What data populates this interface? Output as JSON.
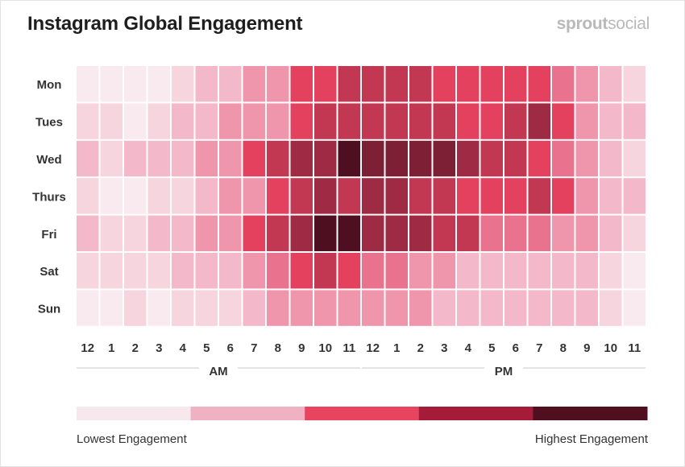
{
  "header": {
    "title": "Instagram Global Engagement",
    "brand_bold": "sprout",
    "brand_light": "social"
  },
  "chart_data": {
    "type": "heatmap",
    "title": "Instagram Global Engagement",
    "rows": [
      "Mon",
      "Tues",
      "Wed",
      "Thurs",
      "Fri",
      "Sat",
      "Sun"
    ],
    "columns": [
      "12",
      "1",
      "2",
      "3",
      "4",
      "5",
      "6",
      "7",
      "8",
      "9",
      "10",
      "11",
      "12",
      "1",
      "2",
      "3",
      "4",
      "5",
      "6",
      "7",
      "8",
      "9",
      "10",
      "11"
    ],
    "column_groups": [
      {
        "label": "AM",
        "span": 12
      },
      {
        "label": "PM",
        "span": 12
      }
    ],
    "scale_min_label": "Lowest Engagement",
    "scale_max_label": "Highest Engagement",
    "value_range": [
      1,
      10
    ],
    "values": [
      [
        1,
        1,
        1,
        1,
        2,
        3,
        3,
        4,
        4,
        6,
        6,
        7,
        7,
        7,
        7,
        6,
        6,
        6,
        6,
        6,
        5,
        4,
        3,
        2
      ],
      [
        2,
        2,
        1,
        2,
        3,
        3,
        4,
        4,
        4,
        6,
        7,
        7,
        7,
        7,
        7,
        7,
        6,
        6,
        7,
        8,
        6,
        4,
        3,
        3
      ],
      [
        3,
        2,
        3,
        3,
        3,
        4,
        4,
        6,
        7,
        8,
        8,
        10,
        9,
        9,
        9,
        9,
        8,
        7,
        7,
        6,
        5,
        4,
        3,
        2
      ],
      [
        2,
        1,
        1,
        2,
        2,
        3,
        4,
        4,
        6,
        7,
        8,
        7,
        8,
        8,
        7,
        7,
        6,
        6,
        6,
        7,
        6,
        4,
        3,
        3
      ],
      [
        3,
        2,
        2,
        3,
        3,
        4,
        4,
        6,
        7,
        8,
        10,
        10,
        8,
        8,
        8,
        7,
        7,
        5,
        5,
        5,
        4,
        4,
        3,
        2
      ],
      [
        2,
        2,
        2,
        2,
        3,
        3,
        3,
        4,
        5,
        6,
        7,
        6,
        5,
        5,
        4,
        4,
        3,
        3,
        3,
        3,
        3,
        3,
        2,
        1
      ],
      [
        1,
        1,
        2,
        1,
        2,
        2,
        2,
        3,
        4,
        4,
        4,
        4,
        4,
        4,
        4,
        3,
        3,
        3,
        3,
        3,
        3,
        3,
        2,
        1
      ]
    ],
    "legend_colors": [
      "#f7e8ed",
      "#f0b1c3",
      "#e8445f",
      "#a51c39",
      "#4f0f1f"
    ],
    "cell_colors": {
      "1": "#f8eaef",
      "2": "#f7d5df",
      "3": "#f3b8c9",
      "4": "#ef95ac",
      "5": "#e9738f",
      "6": "#e4415f",
      "7": "#c23751",
      "8": "#9e2a43",
      "9": "#7d1f35",
      "10": "#4e0f20"
    }
  }
}
